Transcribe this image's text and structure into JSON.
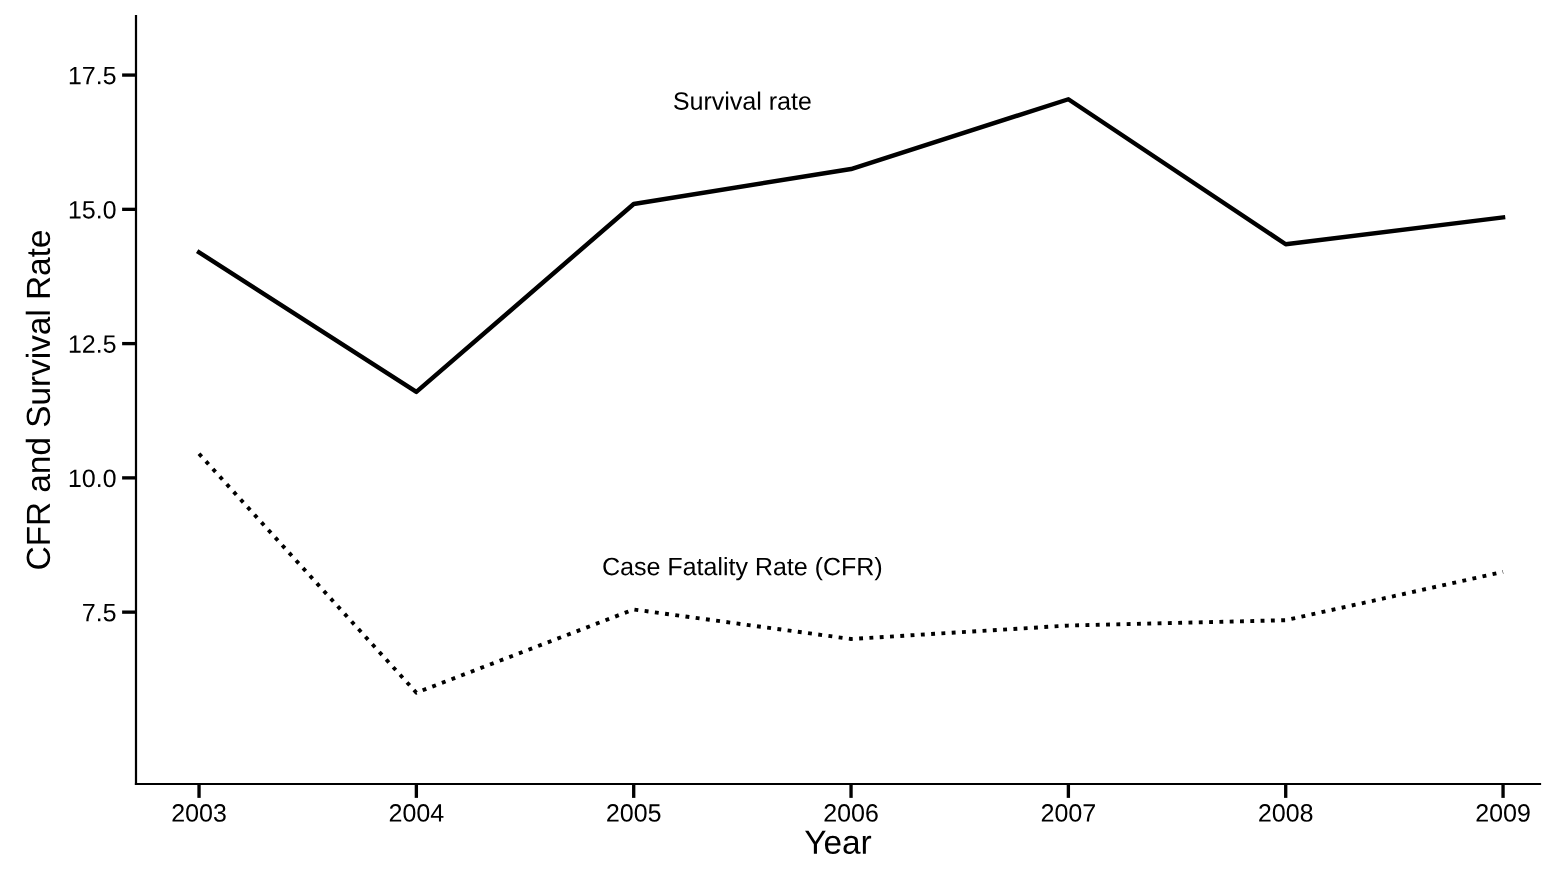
{
  "chart_data": {
    "type": "line",
    "xlabel": "Year",
    "ylabel": "CFR and Survival Rate",
    "x": [
      2003,
      2004,
      2005,
      2006,
      2007,
      2008,
      2009
    ],
    "series": [
      {
        "name": "Survival rate",
        "color": "#000000",
        "line_style": "solid",
        "values": [
          14.2,
          11.6,
          15.1,
          15.75,
          17.05,
          14.35,
          14.85
        ]
      },
      {
        "name": "Case Fatality Rate (CFR)",
        "color": "#000000",
        "line_style": "dotted",
        "values": [
          10.45,
          6.0,
          7.55,
          7.0,
          7.25,
          7.35,
          8.25
        ]
      }
    ],
    "xlim": [
      2002.71,
      2009.17
    ],
    "ylim": [
      4.3,
      18.6
    ],
    "xticks": [
      2003,
      2004,
      2005,
      2006,
      2007,
      2008,
      2009
    ],
    "yticks": [
      {
        "value": 7.5,
        "label": "7.5"
      },
      {
        "value": 10,
        "label": "10.0"
      },
      {
        "value": 12.5,
        "label": "12.5"
      },
      {
        "value": 15,
        "label": "15.0"
      },
      {
        "value": 17.5,
        "label": "17.5"
      }
    ],
    "grid": false,
    "legend": false,
    "marker": "none"
  }
}
